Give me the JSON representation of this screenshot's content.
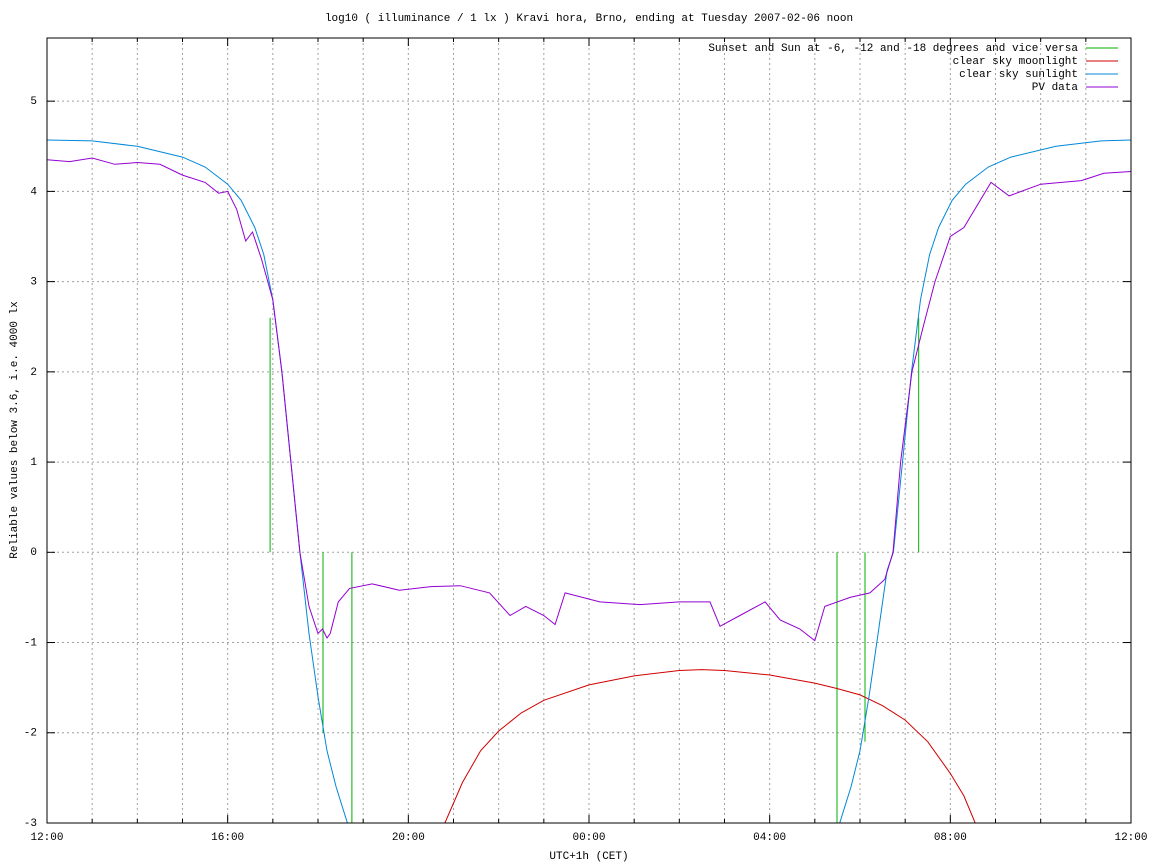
{
  "chart_data": {
    "type": "line",
    "title": "log10 ( illuminance / 1 lx ) Kravi hora, Brno, ending at Tuesday 2007-02-06 noon",
    "x_label": "UTC+1h (CET)",
    "y_label": "Reliable values below 3.6, i.e. 4000 lx",
    "xlim": [
      0,
      24
    ],
    "ylim": [
      -3,
      5.7
    ],
    "xticks": [
      {
        "value": 0,
        "label": "12:00"
      },
      {
        "value": 4,
        "label": "16:00"
      },
      {
        "value": 8,
        "label": "20:00"
      },
      {
        "value": 12,
        "label": "00:00"
      },
      {
        "value": 16,
        "label": "04:00"
      },
      {
        "value": 20,
        "label": "08:00"
      },
      {
        "value": 24,
        "label": "12:00"
      }
    ],
    "xminorticks": [
      1,
      2,
      3,
      5,
      6,
      7,
      9,
      10,
      11,
      13,
      14,
      15,
      17,
      18,
      19,
      21,
      22,
      23
    ],
    "yticks": [
      -3,
      -2,
      -1,
      0,
      1,
      2,
      3,
      4,
      5
    ],
    "grid": true,
    "legend": "top-right",
    "series": [
      {
        "name": "Sunset and Sun at -6, -12 and -18 degrees and vice versa",
        "color": "#00b000",
        "x": [
          4.94,
          4.94,
          4.94,
          6.11,
          6.11,
          6.11,
          6.75,
          6.75,
          6.75,
          17.49,
          17.49,
          17.49,
          18.11,
          18.11,
          18.11,
          19.3,
          19.3
        ],
        "values": [
          0,
          2.6,
          null,
          0,
          -2.0,
          null,
          0,
          -3,
          null,
          0,
          -3,
          null,
          0,
          -2.1,
          null,
          0,
          2.6
        ]
      },
      {
        "name": "clear sky moonlight",
        "color": "#d00000",
        "x": [
          8.81,
          9.2,
          9.6,
          10,
          10.5,
          11,
          12,
          13,
          14,
          14.5,
          15,
          16,
          17,
          17.5,
          18,
          18.5,
          19,
          19.5,
          20,
          20.3,
          20.55
        ],
        "values": [
          -3,
          -2.55,
          -2.2,
          -1.98,
          -1.78,
          -1.64,
          -1.47,
          -1.37,
          -1.31,
          -1.3,
          -1.31,
          -1.36,
          -1.45,
          -1.51,
          -1.58,
          -1.7,
          -1.86,
          -2.1,
          -2.45,
          -2.7,
          -3
        ]
      },
      {
        "name": "clear sky sunlight",
        "color": "#0088d8",
        "x": [
          0,
          1,
          2,
          3,
          3.5,
          4,
          4.3,
          4.6,
          4.8,
          5.0,
          5.2,
          5.4,
          5.6,
          5.8,
          6.0,
          6.2,
          6.4,
          6.65,
          17.55,
          17.8,
          18.0,
          18.2,
          18.4,
          18.6,
          18.74,
          18.94,
          19.14,
          19.34,
          19.54,
          19.74,
          20.04,
          20.34,
          20.84,
          21.34,
          22.34,
          23.34,
          24
        ],
        "values": [
          4.57,
          4.56,
          4.5,
          4.38,
          4.27,
          4.08,
          3.9,
          3.6,
          3.3,
          2.8,
          2.0,
          1.0,
          0.0,
          -0.9,
          -1.6,
          -2.2,
          -2.6,
          -3,
          -3,
          -2.6,
          -2.2,
          -1.6,
          -0.9,
          -0.2,
          0.0,
          1.0,
          2.0,
          2.8,
          3.3,
          3.6,
          3.9,
          4.08,
          4.27,
          4.38,
          4.5,
          4.56,
          4.57
        ]
      },
      {
        "name": "PV data",
        "color": "#9400d3",
        "x": [
          0,
          0.5,
          1,
          1.5,
          2,
          2.5,
          3,
          3.5,
          3.8,
          4.0,
          4.2,
          4.4,
          4.55,
          4.75,
          5.0,
          5.2,
          5.4,
          5.6,
          5.8,
          6.0,
          6.1,
          6.2,
          6.27,
          6.45,
          6.7,
          7.2,
          7.8,
          8.5,
          9.15,
          9.8,
          10.25,
          10.6,
          11.0,
          11.25,
          11.47,
          12.24,
          13.13,
          14.0,
          14.68,
          14.9,
          15.34,
          15.9,
          16.23,
          16.67,
          17.0,
          17.22,
          17.78,
          18.22,
          18.55,
          18.73,
          18.9,
          19.15,
          19.4,
          19.66,
          20.0,
          20.3,
          20.9,
          21.3,
          22.0,
          22.9,
          23.4,
          24
        ],
        "values": [
          4.35,
          4.33,
          4.37,
          4.3,
          4.32,
          4.3,
          4.18,
          4.1,
          3.98,
          4.0,
          3.8,
          3.45,
          3.55,
          3.25,
          2.8,
          2.0,
          1.0,
          0.0,
          -0.6,
          -0.9,
          -0.85,
          -0.95,
          -0.9,
          -0.55,
          -0.4,
          -0.35,
          -0.42,
          -0.38,
          -0.37,
          -0.45,
          -0.7,
          -0.6,
          -0.7,
          -0.8,
          -0.45,
          -0.55,
          -0.58,
          -0.55,
          -0.55,
          -0.82,
          -0.7,
          -0.55,
          -0.75,
          -0.85,
          -0.98,
          -0.6,
          -0.5,
          -0.45,
          -0.3,
          0.0,
          1.0,
          2.0,
          2.5,
          3.0,
          3.5,
          3.6,
          4.1,
          3.95,
          4.08,
          4.12,
          4.2,
          4.22
        ]
      }
    ]
  }
}
